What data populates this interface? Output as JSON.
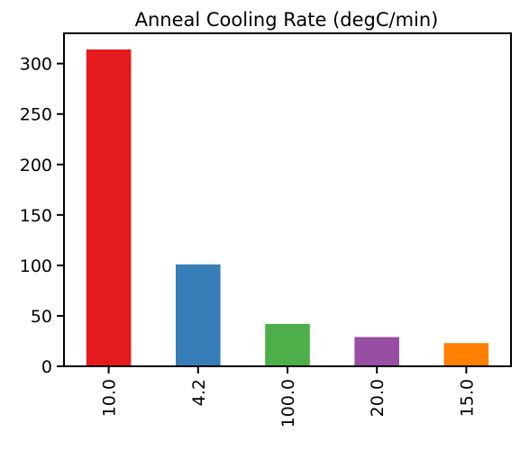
{
  "chart_data": {
    "type": "bar",
    "title": "Anneal Cooling Rate (degC/min)",
    "xlabel": "",
    "ylabel": "",
    "categories": [
      "10.0",
      "4.2",
      "100.0",
      "20.0",
      "15.0"
    ],
    "values": [
      314,
      101,
      42,
      29,
      23
    ],
    "colors": [
      "#e41a1c",
      "#377eb8",
      "#4daf4a",
      "#984ea3",
      "#ff7f00"
    ],
    "ylim": [
      0,
      330
    ],
    "yticks": [
      0,
      50,
      100,
      150,
      200,
      250,
      300
    ],
    "grid": false,
    "legend": "none"
  }
}
